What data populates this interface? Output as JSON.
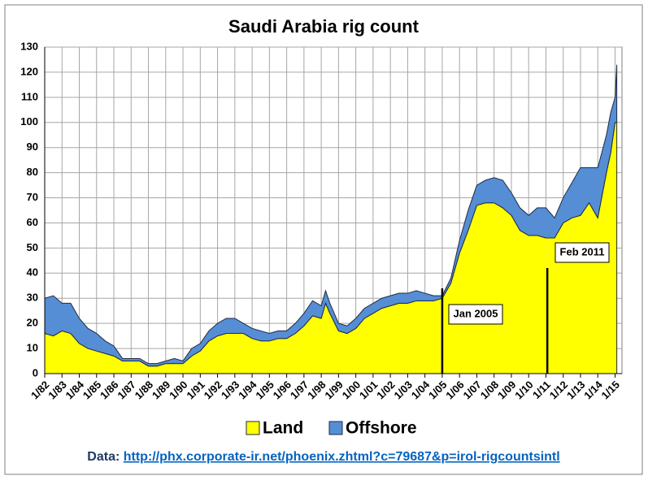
{
  "chart_data": {
    "type": "stacked_area",
    "title": "Saudi Arabia rig count",
    "x": [
      1982,
      1982.5,
      1983,
      1983.5,
      1984,
      1984.5,
      1985,
      1985.5,
      1986,
      1986.5,
      1987,
      1987.5,
      1988,
      1988.5,
      1989,
      1989.5,
      1990,
      1990.5,
      1991,
      1991.5,
      1992,
      1992.5,
      1993,
      1993.5,
      1994,
      1994.5,
      1995,
      1995.5,
      1996,
      1996.5,
      1997,
      1997.5,
      1998,
      1998.25,
      1998.5,
      1999,
      1999.5,
      2000,
      2000.5,
      2001,
      2001.5,
      2002,
      2002.5,
      2003,
      2003.5,
      2004,
      2004.5,
      2005,
      2005.5,
      2006,
      2006.5,
      2007,
      2007.5,
      2008,
      2008.5,
      2009,
      2009.5,
      2010,
      2010.5,
      2011,
      2011.5,
      2012,
      2012.5,
      2013,
      2013.5,
      2014,
      2014.5,
      2014.75,
      2015,
      2015.1
    ],
    "series": [
      {
        "name": "Land",
        "color": "#ffff00",
        "values": [
          16,
          15,
          17,
          16,
          12,
          10,
          9,
          8,
          7,
          5,
          5,
          5,
          3,
          3,
          4,
          4,
          4,
          7,
          9,
          13,
          15,
          16,
          16,
          16,
          14,
          13,
          13,
          14,
          14,
          16,
          19,
          23,
          22,
          28,
          24,
          17,
          16,
          18,
          22,
          24,
          26,
          27,
          28,
          28,
          29,
          29,
          29,
          30,
          36,
          48,
          57,
          67,
          68,
          68,
          66,
          63,
          57,
          55,
          55,
          54,
          54,
          60,
          62,
          63,
          68,
          62,
          80,
          88,
          100,
          100
        ]
      },
      {
        "name": "Offshore",
        "color": "#558ed5",
        "values": [
          14,
          16,
          11,
          12,
          10,
          8,
          7,
          5,
          4,
          1,
          1,
          1,
          1,
          1,
          1,
          2,
          1,
          3,
          3,
          4,
          5,
          6,
          6,
          4,
          4,
          4,
          3,
          3,
          3,
          4,
          5,
          6,
          5,
          5,
          4,
          3,
          3,
          4,
          4,
          4,
          4,
          4,
          4,
          4,
          4,
          3,
          2,
          1,
          2,
          5,
          8,
          8,
          9,
          10,
          11,
          9,
          9,
          8,
          11,
          12,
          8,
          10,
          14,
          19,
          14,
          20,
          15,
          16,
          10,
          23
        ]
      }
    ],
    "xlim": [
      1982,
      2015.4
    ],
    "xticks": [
      {
        "value": 1982,
        "label": "1/82"
      },
      {
        "value": 1983,
        "label": "1/83"
      },
      {
        "value": 1984,
        "label": "1/84"
      },
      {
        "value": 1985,
        "label": "1/85"
      },
      {
        "value": 1986,
        "label": "1/86"
      },
      {
        "value": 1987,
        "label": "1/87"
      },
      {
        "value": 1988,
        "label": "1/88"
      },
      {
        "value": 1989,
        "label": "1/89"
      },
      {
        "value": 1990,
        "label": "1/90"
      },
      {
        "value": 1991,
        "label": "1/91"
      },
      {
        "value": 1992,
        "label": "1/92"
      },
      {
        "value": 1993,
        "label": "1/93"
      },
      {
        "value": 1994,
        "label": "1/94"
      },
      {
        "value": 1995,
        "label": "1/95"
      },
      {
        "value": 1996,
        "label": "1/96"
      },
      {
        "value": 1997,
        "label": "1/97"
      },
      {
        "value": 1998,
        "label": "1/98"
      },
      {
        "value": 1999,
        "label": "1/99"
      },
      {
        "value": 2000,
        "label": "1/00"
      },
      {
        "value": 2001,
        "label": "1/01"
      },
      {
        "value": 2002,
        "label": "1/02"
      },
      {
        "value": 2003,
        "label": "1/03"
      },
      {
        "value": 2004,
        "label": "1/04"
      },
      {
        "value": 2005,
        "label": "1/05"
      },
      {
        "value": 2006,
        "label": "1/06"
      },
      {
        "value": 2007,
        "label": "1/07"
      },
      {
        "value": 2008,
        "label": "1/08"
      },
      {
        "value": 2009,
        "label": "1/09"
      },
      {
        "value": 2010,
        "label": "1/10"
      },
      {
        "value": 2011,
        "label": "1/11"
      },
      {
        "value": 2012,
        "label": "1/12"
      },
      {
        "value": 2013,
        "label": "1/13"
      },
      {
        "value": 2014,
        "label": "1/14"
      },
      {
        "value": 2015,
        "label": "1/15"
      }
    ],
    "ylim": [
      0,
      130
    ],
    "yticks": [
      0,
      10,
      20,
      30,
      40,
      50,
      60,
      70,
      80,
      90,
      100,
      110,
      120,
      130
    ],
    "grid": true,
    "annotations": [
      {
        "text": "Jan 2005",
        "x": 2005
      },
      {
        "text": "Feb 2011",
        "x": 2011.08
      }
    ],
    "source": {
      "label": "Data:",
      "link": "http://phx.corporate-ir.net/phoenix.zhtml?c=79687&p=irol-rigcountsintl"
    }
  }
}
